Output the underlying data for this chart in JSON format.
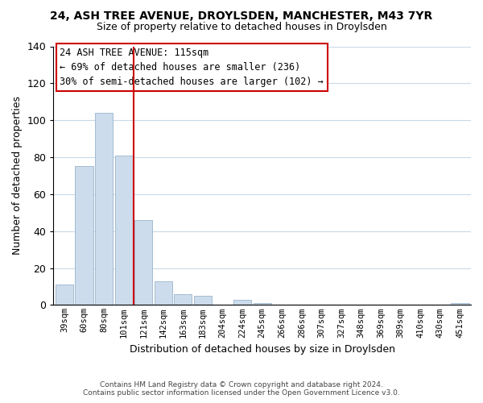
{
  "title": "24, ASH TREE AVENUE, DROYLSDEN, MANCHESTER, M43 7YR",
  "subtitle": "Size of property relative to detached houses in Droylsden",
  "xlabel": "Distribution of detached houses by size in Droylsden",
  "ylabel": "Number of detached properties",
  "bar_labels": [
    "39sqm",
    "60sqm",
    "80sqm",
    "101sqm",
    "121sqm",
    "142sqm",
    "163sqm",
    "183sqm",
    "204sqm",
    "224sqm",
    "245sqm",
    "266sqm",
    "286sqm",
    "307sqm",
    "327sqm",
    "348sqm",
    "369sqm",
    "389sqm",
    "410sqm",
    "430sqm",
    "451sqm"
  ],
  "bar_values": [
    11,
    75,
    104,
    81,
    46,
    13,
    6,
    5,
    0,
    3,
    1,
    0,
    0,
    0,
    0,
    0,
    0,
    0,
    0,
    0,
    1
  ],
  "bar_color": "#cddcec",
  "bar_edge_color": "#9ab4cc",
  "vline_color": "#cc0000",
  "ylim": [
    0,
    140
  ],
  "yticks": [
    0,
    20,
    40,
    60,
    80,
    100,
    120,
    140
  ],
  "annotation_title": "24 ASH TREE AVENUE: 115sqm",
  "annotation_line1": "← 69% of detached houses are smaller (236)",
  "annotation_line2": "30% of semi-detached houses are larger (102) →",
  "annotation_box_color": "#ffffff",
  "annotation_box_edge": "#cc0000",
  "footer_line1": "Contains HM Land Registry data © Crown copyright and database right 2024.",
  "footer_line2": "Contains public sector information licensed under the Open Government Licence v3.0.",
  "background_color": "#ffffff",
  "grid_color": "#c8daea"
}
